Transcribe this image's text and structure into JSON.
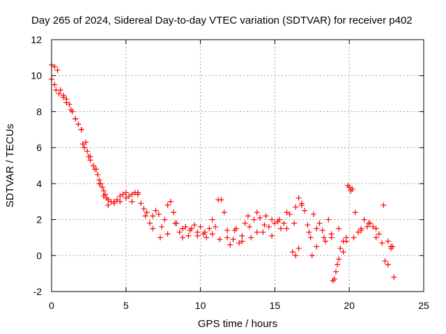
{
  "chart_data": {
    "type": "scatter",
    "title": "Day 265 of 2024, Sidereal Day-to-day VTEC variation (SDTVAR) for receiver p402",
    "xlabel": "GPS time / hours",
    "ylabel": "SDTVAR / TECUs",
    "xlim": [
      0,
      25
    ],
    "ylim": [
      -2,
      12
    ],
    "xticks": [
      "0",
      "5",
      "10",
      "15",
      "20",
      "25"
    ],
    "yticks": [
      "-2",
      "0",
      "2",
      "4",
      "6",
      "8",
      "10",
      "12"
    ],
    "grid": true,
    "marker": "+",
    "color": "#ff0000",
    "series": [
      {
        "name": "SDTVAR",
        "x": [
          0.0,
          0.2,
          0.4,
          0.6,
          0.8,
          1.0,
          1.2,
          1.4,
          1.6,
          1.8,
          2.0,
          2.1,
          2.2,
          2.4,
          2.5,
          2.6,
          2.8,
          3.0,
          3.1,
          3.2,
          3.3,
          3.4,
          3.5,
          3.6,
          3.7,
          3.8,
          4.0,
          4.2,
          4.4,
          4.6,
          4.8,
          5.0,
          5.2,
          5.4,
          5.6,
          5.8,
          6.0,
          6.2,
          6.4,
          6.6,
          6.8,
          7.0,
          7.2,
          7.4,
          7.6,
          7.8,
          8.0,
          8.2,
          8.4,
          8.6,
          8.8,
          9.0,
          9.2,
          9.4,
          9.6,
          9.8,
          10.0,
          10.2,
          10.4,
          10.6,
          10.8,
          11.0,
          11.2,
          11.4,
          11.6,
          11.8,
          12.0,
          12.2,
          12.4,
          12.6,
          12.8,
          13.0,
          13.2,
          13.4,
          13.6,
          13.8,
          14.0,
          14.2,
          14.4,
          14.6,
          14.8,
          15.0,
          15.2,
          15.4,
          15.6,
          15.8,
          16.0,
          16.2,
          16.4,
          16.6,
          16.8,
          17.0,
          17.2,
          17.4,
          17.6,
          17.8,
          18.0,
          18.2,
          18.4,
          18.6,
          18.8,
          19.0,
          19.2,
          19.4,
          19.6,
          19.8,
          20.0,
          20.2,
          20.4,
          20.6,
          20.8,
          21.0,
          21.2,
          21.4,
          21.6,
          21.8,
          22.0,
          22.2,
          22.4,
          22.6,
          22.8,
          23.0,
          0.0,
          0.2,
          0.3,
          0.5,
          0.8,
          1.0,
          1.3,
          1.6,
          2.0,
          2.3,
          2.6,
          2.9,
          3.2,
          3.5,
          3.8,
          4.2,
          4.6,
          5.0,
          5.4,
          5.8,
          6.3,
          6.8,
          7.3,
          7.8,
          8.3,
          8.8,
          9.3,
          9.8,
          10.3,
          10.8,
          11.3,
          11.8,
          12.3,
          12.8,
          13.3,
          13.8,
          14.3,
          14.8,
          15.3,
          15.8,
          16.3,
          16.8,
          17.3,
          17.8,
          18.3,
          18.8,
          19.3,
          19.8,
          20.3,
          20.8,
          21.3,
          21.8,
          22.3,
          22.8,
          16.4,
          16.6,
          17.5,
          18.9,
          19.1,
          19.3,
          19.6,
          19.9,
          20.1,
          22.6,
          22.9
        ],
        "y": [
          10.6,
          10.5,
          10.3,
          9.2,
          8.9,
          8.7,
          8.4,
          8.0,
          7.6,
          7.3,
          7.0,
          6.2,
          6.0,
          5.8,
          5.5,
          5.3,
          5.0,
          4.8,
          4.5,
          4.2,
          4.0,
          3.8,
          3.6,
          3.4,
          3.2,
          3.1,
          3.0,
          3.0,
          3.1,
          3.3,
          3.4,
          3.5,
          3.3,
          3.4,
          3.5,
          3.5,
          2.9,
          2.6,
          2.4,
          1.8,
          2.2,
          2.5,
          2.3,
          1.6,
          2.0,
          2.8,
          3.0,
          2.4,
          1.8,
          1.3,
          1.5,
          1.6,
          1.1,
          1.5,
          1.7,
          1.3,
          1.6,
          1.2,
          1.0,
          1.5,
          2.0,
          1.6,
          3.1,
          3.1,
          2.4,
          1.4,
          0.6,
          0.9,
          1.5,
          0.7,
          1.1,
          1.8,
          2.2,
          1.0,
          2.0,
          2.4,
          2.1,
          1.3,
          2.2,
          1.6,
          2.0,
          1.8,
          1.9,
          1.5,
          1.8,
          2.4,
          2.3,
          0.2,
          2.7,
          3.2,
          2.8,
          2.5,
          1.7,
          1.0,
          2.3,
          0.5,
          1.8,
          1.4,
          0.8,
          2.0,
          1.0,
          -1.3,
          -0.5,
          0.4,
          0.8,
          1.0,
          3.8,
          3.7,
          2.4,
          1.3,
          1.5,
          2.0,
          1.6,
          1.8,
          1.6,
          1.5,
          1.2,
          0.7,
          -0.3,
          0.8,
          0.4,
          -1.2,
          9.8,
          9.5,
          9.2,
          9.0,
          8.8,
          8.5,
          8.1,
          7.6,
          7.0,
          6.3,
          5.5,
          4.8,
          4.0,
          3.3,
          2.8,
          2.9,
          3.0,
          3.2,
          3.0,
          3.4,
          2.2,
          1.5,
          1.0,
          1.2,
          1.8,
          1.0,
          1.4,
          1.1,
          1.3,
          1.2,
          0.9,
          1.0,
          1.4,
          0.8,
          1.6,
          1.3,
          1.7,
          1.1,
          2.0,
          1.5,
          1.8,
          2.9,
          1.3,
          1.5,
          1.0,
          1.2,
          1.5,
          0.8,
          1.0,
          1.4,
          1.8,
          1.0,
          2.8,
          0.5,
          0.0,
          0.4,
          0.0,
          -1.4,
          -0.9,
          -0.2,
          0.2,
          3.9,
          3.6,
          -0.5,
          0.5
        ]
      }
    ]
  }
}
